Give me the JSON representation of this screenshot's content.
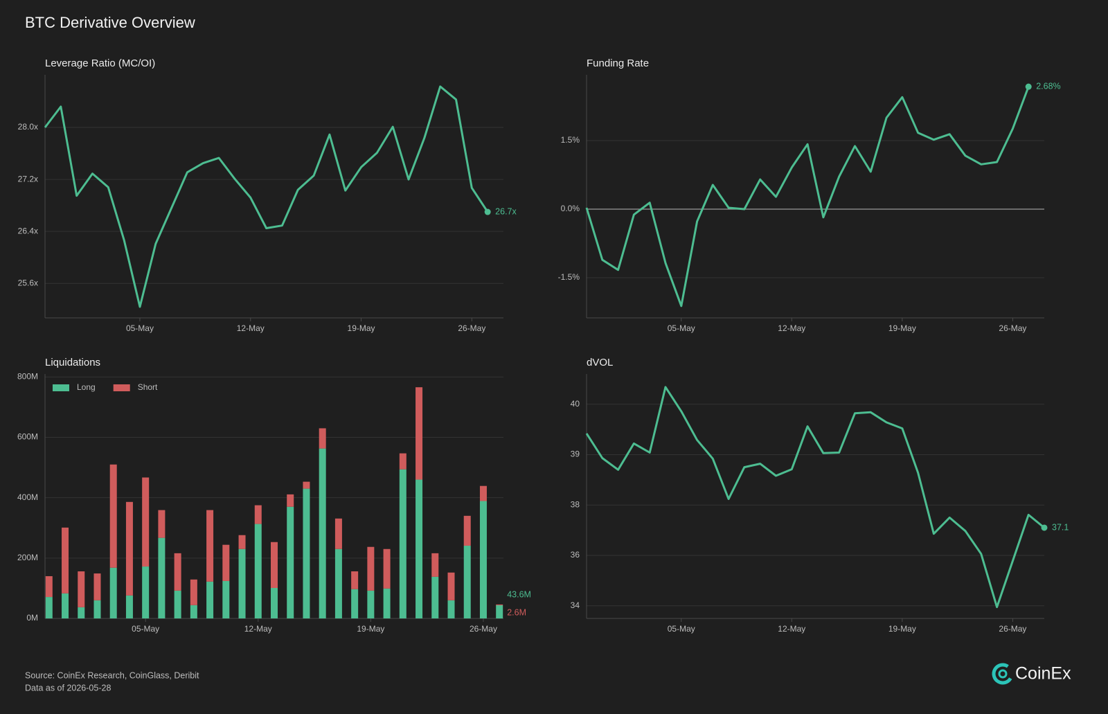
{
  "title": "BTC Derivative Overview",
  "chart_data": [
    {
      "type": "line",
      "title": "Leverage Ratio (MC/OI)",
      "color": "#4dbd91",
      "grid": true,
      "categories": [
        null,
        null,
        null,
        null,
        null,
        null,
        "05-May",
        null,
        null,
        null,
        null,
        null,
        null,
        "12-May",
        null,
        null,
        null,
        null,
        null,
        null,
        "19-May",
        null,
        null,
        null,
        null,
        null,
        null,
        "26-May",
        null
      ],
      "values": [
        28.0,
        28.32,
        26.95,
        27.29,
        27.08,
        26.27,
        25.24,
        26.21,
        26.76,
        27.31,
        27.45,
        27.53,
        27.21,
        26.92,
        26.45,
        26.49,
        27.04,
        27.26,
        27.89,
        27.03,
        27.39,
        27.61,
        28.01,
        27.2,
        27.84,
        28.63,
        28.43,
        27.07,
        26.7
      ],
      "value_labels": [
        null,
        null,
        null,
        null,
        null,
        null,
        null,
        null,
        null,
        null,
        null,
        null,
        null,
        null,
        null,
        null,
        null,
        null,
        null,
        null,
        null,
        null,
        null,
        null,
        null,
        null,
        null,
        null,
        "26.7x"
      ],
      "ylim": [
        25.07,
        28.81
      ],
      "yticks": [
        {
          "value": 25.6,
          "label": "25.6x"
        },
        {
          "value": 26.4,
          "label": "26.4x"
        },
        {
          "value": 27.2,
          "label": "27.2x"
        },
        {
          "value": 28.0,
          "label": "28.0x"
        }
      ]
    },
    {
      "type": "line",
      "title": "Funding Rate",
      "color": "#4dbd91",
      "grid": true,
      "zero_line": true,
      "categories": [
        null,
        null,
        null,
        null,
        null,
        null,
        "05-May",
        null,
        null,
        null,
        null,
        null,
        null,
        "12-May",
        null,
        null,
        null,
        null,
        null,
        null,
        "19-May",
        null,
        null,
        null,
        null,
        null,
        null,
        "26-May",
        null
      ],
      "values": [
        0.03,
        -1.11,
        -1.33,
        -0.12,
        0.14,
        -1.18,
        -2.12,
        -0.27,
        0.53,
        0.03,
        0.0,
        0.65,
        0.27,
        0.91,
        1.42,
        -0.18,
        0.71,
        1.38,
        0.82,
        2.0,
        2.45,
        1.67,
        1.52,
        1.64,
        1.17,
        0.98,
        1.03,
        1.76,
        2.68
      ],
      "value_labels": [
        null,
        null,
        null,
        null,
        null,
        null,
        null,
        null,
        null,
        null,
        null,
        null,
        null,
        null,
        null,
        null,
        null,
        null,
        null,
        null,
        null,
        null,
        null,
        null,
        null,
        null,
        null,
        null,
        "2.68%"
      ],
      "ylim": [
        -2.38,
        2.94
      ],
      "yticks": [
        {
          "value": -1.5,
          "label": "-1.5%"
        },
        {
          "value": 0.0,
          "label": "0.0%"
        },
        {
          "value": 1.5,
          "label": "1.5%"
        }
      ]
    },
    {
      "type": "bar",
      "title": "Liquidations",
      "stacked": true,
      "grid": true,
      "legend": "upper left",
      "categories": [
        null,
        null,
        null,
        null,
        null,
        null,
        "05-May",
        null,
        null,
        null,
        null,
        null,
        null,
        "12-May",
        null,
        null,
        null,
        null,
        null,
        null,
        "19-May",
        null,
        null,
        null,
        null,
        null,
        null,
        "26-May",
        null
      ],
      "series": [
        {
          "name": "Long",
          "color": "#4dbd91",
          "values": [
            71,
            83,
            37,
            60,
            168,
            76,
            172,
            267,
            92,
            44,
            122,
            124,
            230,
            313,
            101,
            370,
            430,
            563,
            230,
            97,
            92,
            99,
            494,
            460,
            138,
            60,
            241,
            389,
            43.6
          ],
          "value_labels": [
            null,
            null,
            null,
            null,
            null,
            null,
            null,
            null,
            null,
            null,
            null,
            null,
            null,
            null,
            null,
            null,
            null,
            null,
            null,
            null,
            null,
            null,
            null,
            null,
            null,
            null,
            null,
            null,
            "43.6M"
          ]
        },
        {
          "name": "Short",
          "color": "#d05c5c",
          "values": [
            69,
            218,
            119,
            89,
            342,
            310,
            295,
            92,
            124,
            85,
            237,
            120,
            46,
            62,
            152,
            41,
            23,
            67,
            101,
            59,
            145,
            131,
            53,
            306,
            78,
            92,
            99,
            50,
            2.6
          ],
          "value_labels": [
            null,
            null,
            null,
            null,
            null,
            null,
            null,
            null,
            null,
            null,
            null,
            null,
            null,
            null,
            null,
            null,
            null,
            null,
            null,
            null,
            null,
            null,
            null,
            null,
            null,
            null,
            null,
            null,
            "2.6M"
          ]
        }
      ],
      "ylim": [
        0,
        810
      ],
      "yticks": [
        {
          "value": 0,
          "label": "0M"
        },
        {
          "value": 200,
          "label": "200M"
        },
        {
          "value": 400,
          "label": "400M"
        },
        {
          "value": 600,
          "label": "600M"
        },
        {
          "value": 800,
          "label": "800M"
        }
      ]
    },
    {
      "type": "line",
      "title": "dVOL",
      "color": "#4dbd91",
      "grid": true,
      "categories": [
        null,
        null,
        null,
        null,
        null,
        null,
        "05-May",
        null,
        null,
        null,
        null,
        null,
        null,
        "12-May",
        null,
        null,
        null,
        null,
        null,
        null,
        "19-May",
        null,
        null,
        null,
        null,
        null,
        null,
        "26-May",
        null,
        null
      ],
      "values": [
        39.42,
        38.93,
        38.7,
        39.22,
        39.04,
        40.34,
        39.86,
        39.29,
        38.92,
        38.12,
        38.75,
        38.82,
        38.58,
        38.71,
        39.56,
        39.03,
        39.04,
        39.82,
        39.84,
        39.64,
        39.52,
        38.64,
        36.86,
        37.5,
        36.97,
        36.06,
        33.95,
        35.78,
        37.61,
        37.1
      ],
      "value_labels": [
        null,
        null,
        null,
        null,
        null,
        null,
        null,
        null,
        null,
        null,
        null,
        null,
        null,
        null,
        null,
        null,
        null,
        null,
        null,
        null,
        null,
        null,
        null,
        null,
        null,
        null,
        null,
        null,
        null,
        "37.1"
      ],
      "ylim": [
        33.5,
        40.6
      ],
      "yticks": [
        34,
        36,
        38,
        39,
        40
      ]
    }
  ],
  "footer": {
    "source": "Source: CoinEx Research, CoinGlass, Deribit",
    "as_of": "Data as of 2026-05-28"
  },
  "logo": "CoinEx"
}
